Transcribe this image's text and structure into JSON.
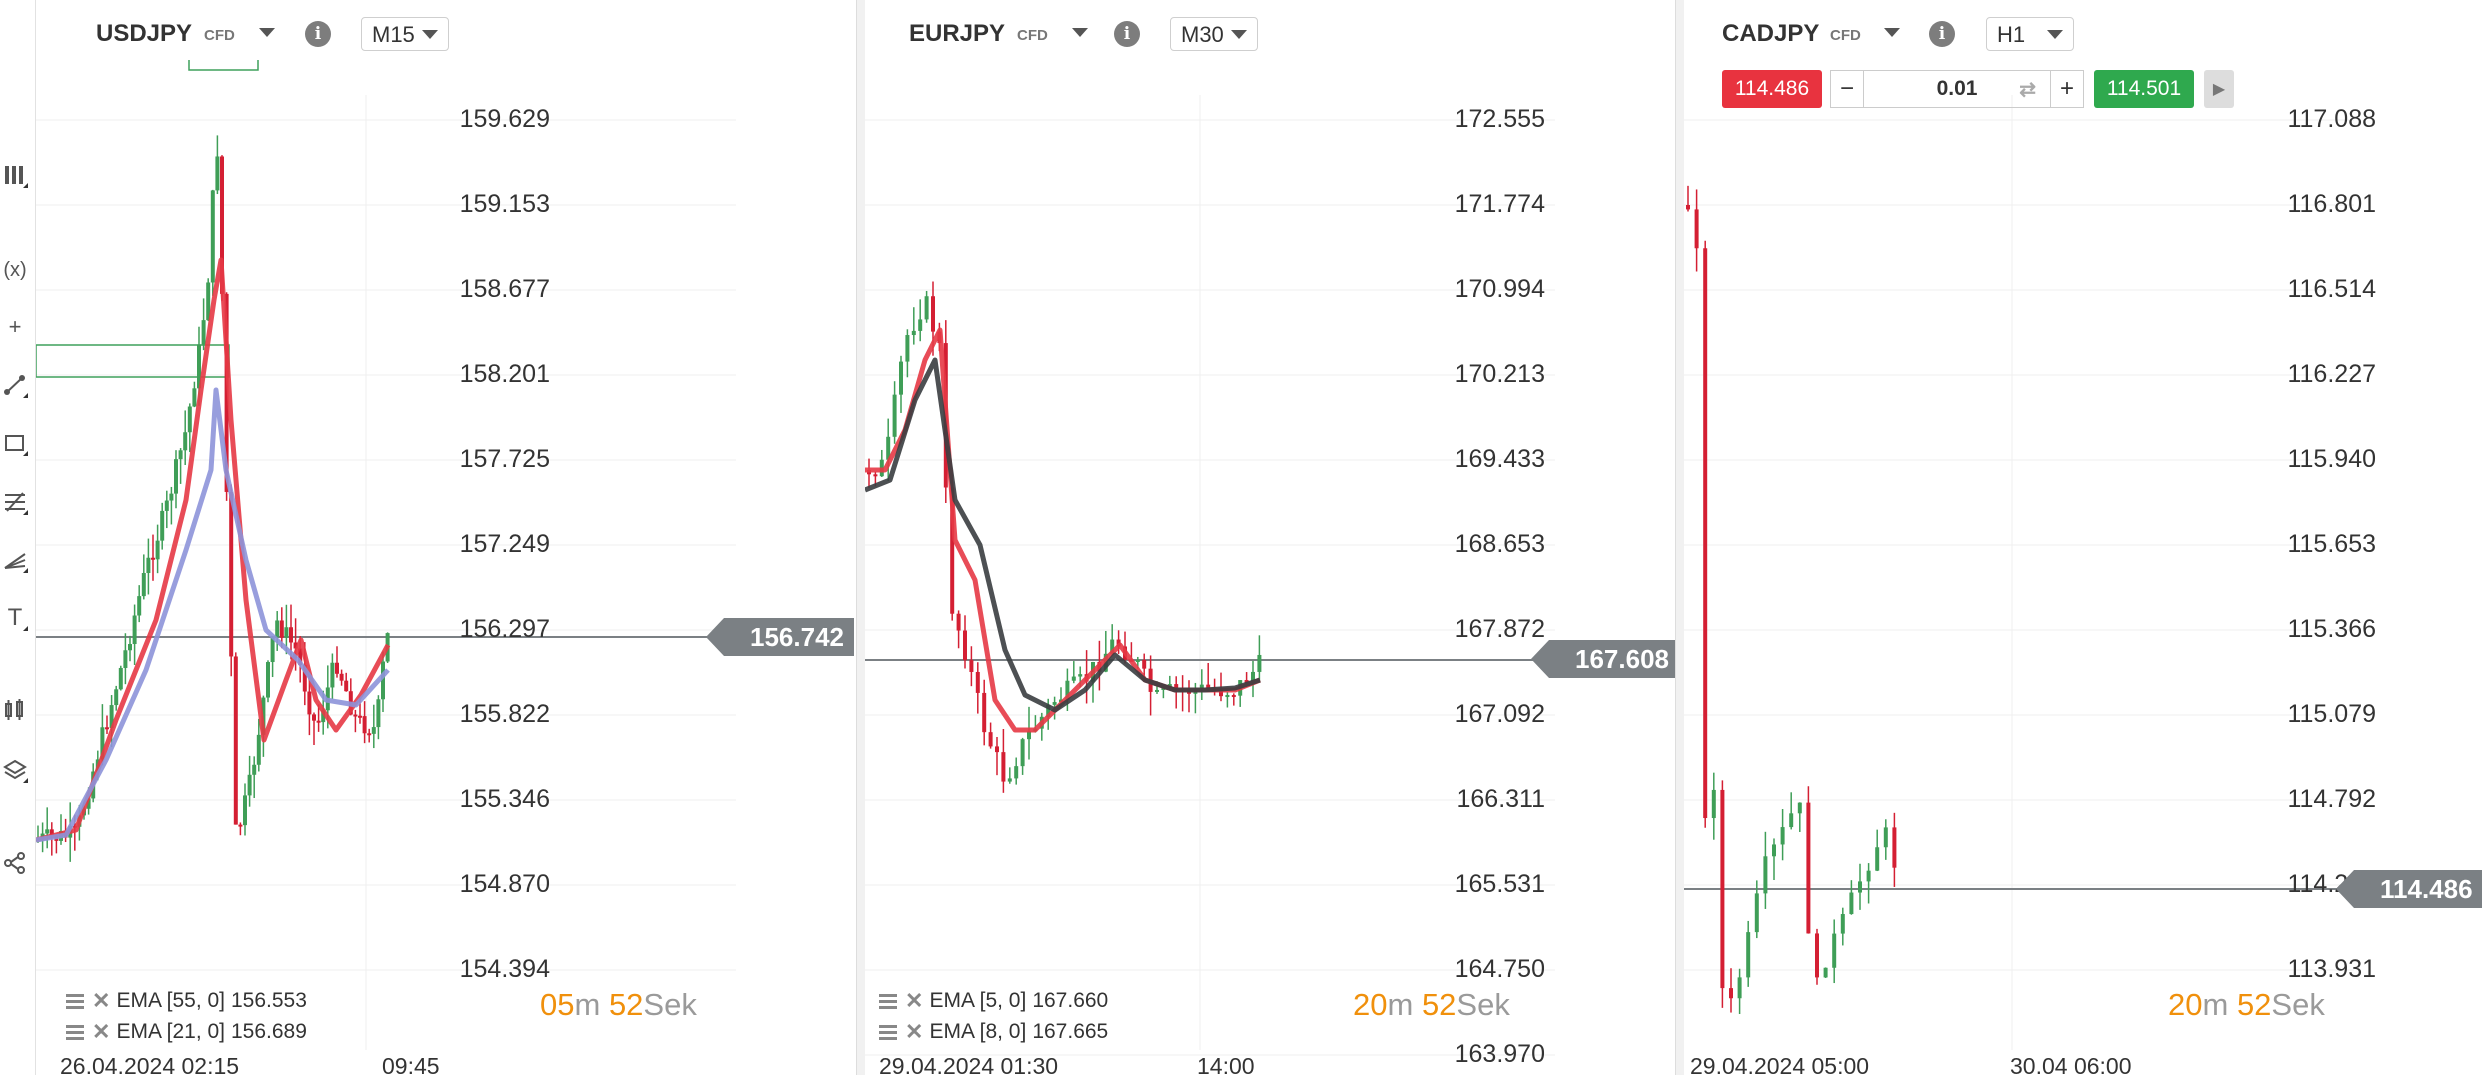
{
  "colors": {
    "bull": "#3f9e57",
    "bear": "#d41f33",
    "ema_red": "#e53945",
    "ema_blue": "#8d94d9",
    "ema_dark": "#3a3d40",
    "price_badge": "#7b8084",
    "timer": "#f0900c",
    "sell": "#e8333f",
    "buy": "#2fa94e"
  },
  "toolbar": {
    "icons": [
      "columns-icon",
      "function-icon",
      "crosshair-icon",
      "trendline-icon",
      "rectangle-icon",
      "fibonacci-icon",
      "pitchfork-icon",
      "text-icon",
      "compare-icon",
      "layers-icon",
      "share-icon"
    ]
  },
  "panels": [
    {
      "symbol": "USDJPY",
      "type": "CFD",
      "timeframe": "M15",
      "price_levels": [
        "159.629",
        "159.153",
        "158.677",
        "158.201",
        "157.725",
        "157.249",
        "156.742",
        "156.297",
        "155.822",
        "155.346",
        "154.870",
        "154.394"
      ],
      "current_price": "156.742",
      "legend": [
        {
          "name": "EMA [55, 0]",
          "value": "156.553"
        },
        {
          "name": "EMA [21, 0]",
          "value": "156.689"
        }
      ],
      "timer": {
        "minutes": "05",
        "min_unit": "m",
        "seconds": "52",
        "sec_unit": "Sek"
      },
      "dates": [
        "26.04.2024 02:15",
        "09:45"
      ]
    },
    {
      "symbol": "EURJPY",
      "type": "CFD",
      "timeframe": "M30",
      "price_levels": [
        "172.555",
        "171.774",
        "170.994",
        "170.213",
        "169.433",
        "168.653",
        "167.872",
        "167.608",
        "167.092",
        "166.311",
        "165.531",
        "164.750",
        "163.970"
      ],
      "current_price": "167.608",
      "legend": [
        {
          "name": "EMA [5, 0]",
          "value": "167.660"
        },
        {
          "name": "EMA [8, 0]",
          "value": "167.665"
        }
      ],
      "timer": {
        "minutes": "20",
        "min_unit": "m",
        "seconds": "52",
        "sec_unit": "Sek"
      },
      "dates": [
        "29.04.2024 01:30",
        "14:00"
      ]
    },
    {
      "symbol": "CADJPY",
      "type": "CFD",
      "timeframe": "H1",
      "trade": {
        "sell": "114.486",
        "minus": "−",
        "lot": "0.01",
        "plus": "+",
        "buy": "114.501"
      },
      "price_levels": [
        "117.088",
        "116.801",
        "116.514",
        "116.227",
        "115.940",
        "115.653",
        "115.366",
        "115.079",
        "114.792",
        "114.486",
        "114.218",
        "113.931"
      ],
      "current_price": "114.486",
      "timer": {
        "minutes": "20",
        "min_unit": "m",
        "seconds": "52",
        "sec_unit": "Sek"
      },
      "dates": [
        "29.04.2024 05:00",
        "30.04 06:00"
      ]
    }
  ]
}
